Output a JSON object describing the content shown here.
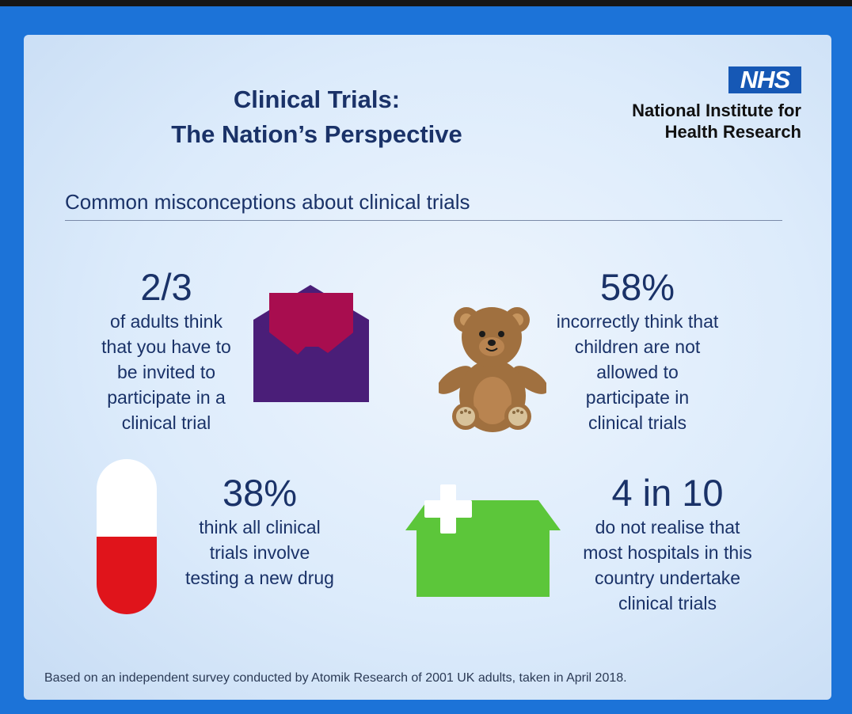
{
  "header": {
    "title_line1": "Clinical Trials:",
    "title_line2": "The Nation’s Perspective",
    "logo_text": "NHS",
    "org_line1": "National Institute for",
    "org_line2": "Health Research"
  },
  "section_title": "Common misconceptions about clinical trials",
  "stats": [
    {
      "value": "2/3",
      "lines": [
        "of adults think",
        "that you have to",
        "be invited to",
        "participate in a",
        "clinical trial"
      ],
      "icon": "envelope-icon"
    },
    {
      "value": "58%",
      "lines": [
        "incorrectly think that",
        "children are not",
        "allowed to",
        "participate in",
        "clinical trials"
      ],
      "icon": "teddy-bear-icon"
    },
    {
      "value": "38%",
      "lines": [
        "think all clinical",
        "trials involve",
        "testing a new drug"
      ],
      "icon": "pill-capsule-icon"
    },
    {
      "value": "4 in 10",
      "lines": [
        "do not realise that",
        "most hospitals in this",
        "country undertake",
        "clinical trials"
      ],
      "icon": "hospital-icon"
    }
  ],
  "footnote": "Based on an independent survey conducted by Atomik Research of 2001 UK adults, taken in April 2018.",
  "colors": {
    "navy_text": "#1a3268",
    "nhs_blue": "#1658b5",
    "envelope_purple": "#4a1e78",
    "letter_magenta": "#a80d4f",
    "bear_brown": "#a0703f",
    "pill_red": "#e0141b",
    "hospital_green": "#5cc63a"
  }
}
